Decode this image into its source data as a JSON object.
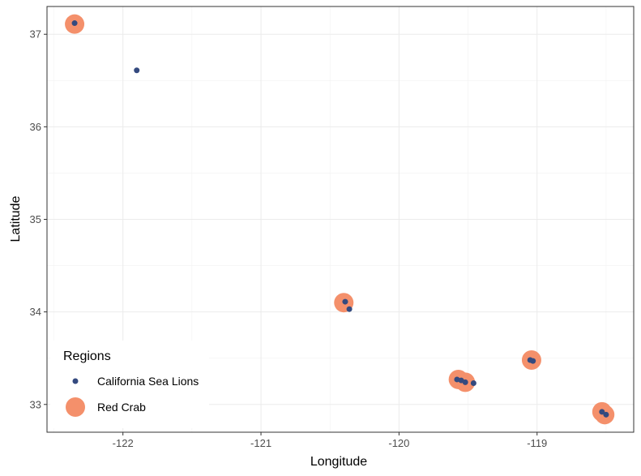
{
  "chart_data": {
    "type": "scatter",
    "title": "",
    "xlabel": "Longitude",
    "ylabel": "Latitude",
    "xlim": [
      -122.55,
      -118.3
    ],
    "ylim": [
      32.7,
      37.3
    ],
    "xticks": [
      -122,
      -121,
      -120,
      -119
    ],
    "yticks": [
      33,
      34,
      35,
      36,
      37
    ],
    "x_tick_labels": [
      "-122",
      "-121",
      "-120",
      "-119"
    ],
    "y_tick_labels": [
      "33",
      "34",
      "35",
      "36",
      "37"
    ],
    "grid": true,
    "legend": {
      "title": "Regions",
      "placement": "bottom-left",
      "entries": [
        "California Sea Lions",
        "Red Crab"
      ]
    },
    "series": [
      {
        "name": "Red Crab",
        "color": "#f4906b",
        "marker": "large-circle",
        "points": [
          {
            "x": -122.35,
            "y": 37.11
          },
          {
            "x": -120.4,
            "y": 34.1
          },
          {
            "x": -119.57,
            "y": 33.27
          },
          {
            "x": -119.52,
            "y": 33.24
          },
          {
            "x": -119.04,
            "y": 33.48
          },
          {
            "x": -118.53,
            "y": 32.92
          },
          {
            "x": -118.51,
            "y": 32.89
          }
        ]
      },
      {
        "name": "California Sea Lions",
        "color": "#344a7f",
        "marker": "small-circle",
        "points": [
          {
            "x": -122.35,
            "y": 37.12
          },
          {
            "x": -121.9,
            "y": 36.61
          },
          {
            "x": -120.39,
            "y": 34.11
          },
          {
            "x": -120.36,
            "y": 34.03
          },
          {
            "x": -119.58,
            "y": 33.27
          },
          {
            "x": -119.55,
            "y": 33.26
          },
          {
            "x": -119.52,
            "y": 33.24
          },
          {
            "x": -119.46,
            "y": 33.23
          },
          {
            "x": -119.05,
            "y": 33.48
          },
          {
            "x": -119.03,
            "y": 33.47
          },
          {
            "x": -118.53,
            "y": 32.92
          },
          {
            "x": -118.5,
            "y": 32.89
          }
        ]
      }
    ]
  }
}
